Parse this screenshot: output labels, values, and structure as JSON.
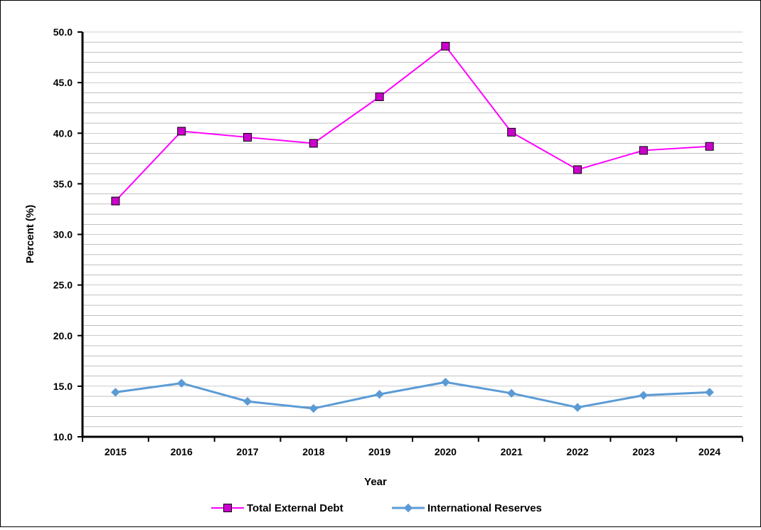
{
  "chart_data": {
    "type": "line",
    "title": "",
    "xlabel": "Year",
    "ylabel": "Percent (%)",
    "categories": [
      "2015",
      "2016",
      "2017",
      "2018",
      "2019",
      "2020",
      "2021",
      "2022",
      "2023",
      "2024"
    ],
    "ylim": [
      10.0,
      50.0
    ],
    "ytick_step": 5.0,
    "yticks": [
      "10.0",
      "15.0",
      "20.0",
      "25.0",
      "30.0",
      "35.0",
      "40.0",
      "45.0",
      "50.0"
    ],
    "grid": true,
    "legend_position": "bottom",
    "series": [
      {
        "name": "Total External Debt",
        "values": [
          33.3,
          40.2,
          39.6,
          39.0,
          43.6,
          48.6,
          40.1,
          36.4,
          38.3,
          38.7
        ],
        "color": "#FF00FF",
        "marker_fill": "#CC00CC",
        "marker": "square"
      },
      {
        "name": "International Reserves",
        "values": [
          14.4,
          15.3,
          13.5,
          12.8,
          14.2,
          15.4,
          14.3,
          12.9,
          14.1,
          14.4
        ],
        "color": "#5B9BD5",
        "marker_fill": "#5B9BD5",
        "marker": "diamond"
      }
    ]
  }
}
